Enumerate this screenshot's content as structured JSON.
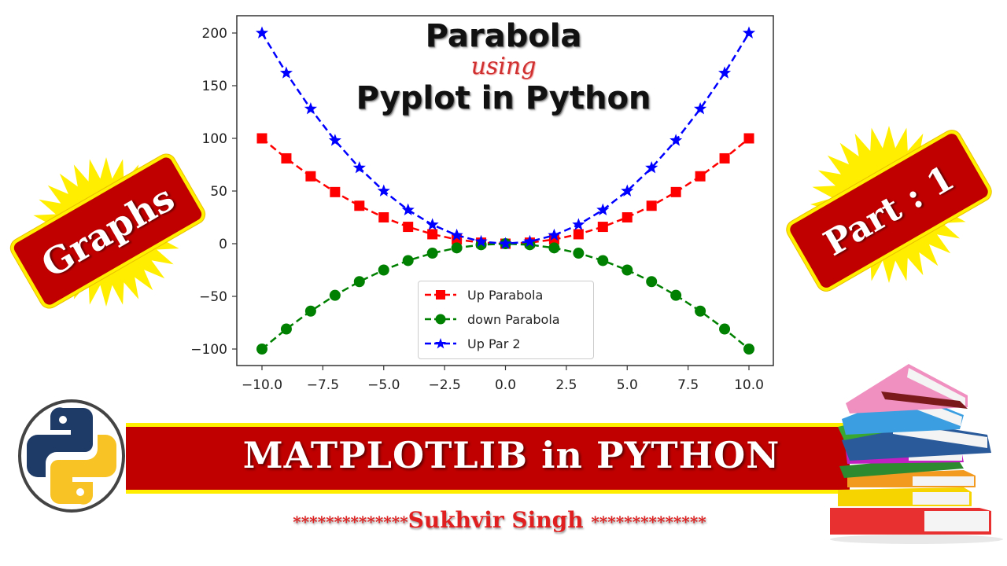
{
  "title": {
    "line1": "Parabola",
    "line2": "using",
    "line3": "Pyplot in Python"
  },
  "badges": {
    "left": "Graphs",
    "right": "Part : 1"
  },
  "banner": {
    "text": "MATPLOTLIB in PYTHON"
  },
  "author": {
    "stars_left": "**************",
    "name": "Sukhvir Singh",
    "stars_right": "**************"
  },
  "icons": {
    "logo": "python-logo-icon",
    "books": "stack-of-books-icon",
    "burst": "starburst-icon"
  },
  "colors": {
    "badge_red": "#c00000",
    "badge_border": "#ffef00",
    "up_parabola": "#ff0000",
    "down_parabola": "#008000",
    "up_par_2": "#0000ff",
    "python_blue": "#1e3a66",
    "python_yellow": "#f7c325"
  },
  "chart_data": {
    "type": "line",
    "title": "Parabola using Pyplot in Python",
    "xlabel": "",
    "ylabel": "",
    "x": [
      -10,
      -9,
      -8,
      -7,
      -6,
      -5,
      -4,
      -3,
      -2,
      -1,
      0,
      1,
      2,
      3,
      4,
      5,
      6,
      7,
      8,
      9,
      10
    ],
    "series": [
      {
        "name": "Up Parabola",
        "color": "#ff0000",
        "marker": "square",
        "linestyle": "dashed",
        "values": [
          100,
          81,
          64,
          49,
          36,
          25,
          16,
          9,
          4,
          1,
          0,
          1,
          4,
          9,
          16,
          25,
          36,
          49,
          64,
          81,
          100
        ]
      },
      {
        "name": "down Parabola",
        "color": "#008000",
        "marker": "circle",
        "linestyle": "dashed",
        "values": [
          -100,
          -81,
          -64,
          -49,
          -36,
          -25,
          -16,
          -9,
          -4,
          -1,
          0,
          -1,
          -4,
          -9,
          -16,
          -25,
          -36,
          -49,
          -64,
          -81,
          -100
        ]
      },
      {
        "name": "Up Par 2",
        "color": "#0000ff",
        "marker": "star",
        "linestyle": "dashed",
        "values": [
          200,
          162,
          128,
          98,
          72,
          50,
          32,
          18,
          8,
          2,
          0,
          2,
          8,
          18,
          32,
          50,
          72,
          98,
          128,
          162,
          200
        ]
      }
    ],
    "xticks": [
      "−10.0",
      "−7.5",
      "−5.0",
      "−2.5",
      "0.0",
      "2.5",
      "5.0",
      "7.5",
      "10.0"
    ],
    "xtick_values": [
      -10,
      -7.5,
      -5,
      -2.5,
      0,
      2.5,
      5,
      7.5,
      10
    ],
    "yticks": [
      "200",
      "150",
      "100",
      "50",
      "0",
      "−50",
      "−100"
    ],
    "ytick_values": [
      200,
      150,
      100,
      50,
      0,
      -50,
      -100
    ],
    "xlim": [
      -11,
      11
    ],
    "ylim": [
      -115,
      215
    ],
    "grid": false,
    "legend_position": "lower center"
  }
}
